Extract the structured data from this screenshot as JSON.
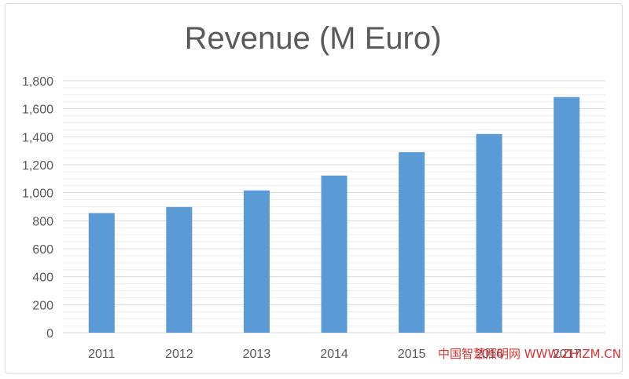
{
  "chart_data": {
    "type": "bar",
    "title": "Revenue (M Euro)",
    "categories": [
      "2011",
      "2012",
      "2013",
      "2014",
      "2015",
      "2016",
      "2017"
    ],
    "values": [
      855,
      898,
      1017,
      1123,
      1290,
      1420,
      1684
    ],
    "ylim": [
      0,
      1800
    ],
    "yticks": [
      0,
      200,
      400,
      600,
      800,
      1000,
      1200,
      1400,
      1600,
      1800
    ],
    "ytick_labels": [
      "0",
      "200",
      "400",
      "600",
      "800",
      "1,000",
      "1,200",
      "1,400",
      "1,600",
      "1,800"
    ],
    "xlabel": "",
    "ylabel": "",
    "grid": true,
    "legend": "none",
    "bar_color": "#5b9bd5",
    "grid_color": "#d9d9d9"
  },
  "watermark": "中国智慧照明网 WWW.ZHIZM.CN"
}
